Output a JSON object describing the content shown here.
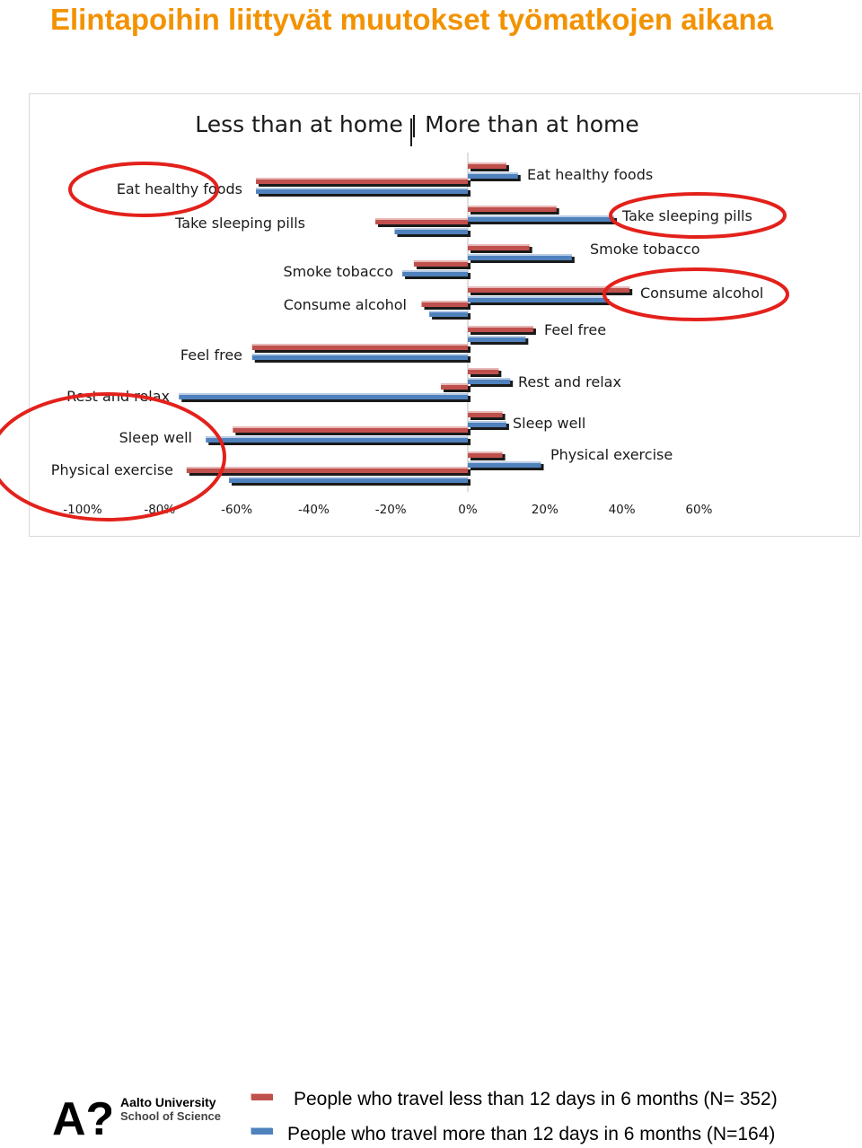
{
  "page": {
    "title": "Elintapoihin liittyvät muutokset työmatkojen aikana"
  },
  "chart_data": {
    "type": "bar",
    "orientation": "horizontal",
    "title": "Less than at home | More than at home",
    "x_tick_labels": [
      "-100%",
      "-80%",
      "-60%",
      "-40%",
      "-20%",
      "0%",
      "20%",
      "40%",
      "60%"
    ],
    "xlim": [
      -100,
      60
    ],
    "grid": false,
    "legend_position": "bottom",
    "series": [
      {
        "name": "People who travel less than 12 days in 6 months (N= 352)",
        "color": "#c0504d"
      },
      {
        "name": "People who travel more than 12 days in 6 months (N=164)",
        "color": "#4f81bd"
      }
    ],
    "less_than_at_home": {
      "groups": [
        {
          "label": "Eat healthy foods",
          "values": [
            -55,
            -55
          ]
        },
        {
          "label": "Take sleeping pills",
          "values": [
            -24,
            -19
          ]
        },
        {
          "label": "Smoke tobacco",
          "values": [
            -14,
            -17
          ]
        },
        {
          "label": "Consume alcohol",
          "values": [
            -12,
            -10
          ]
        },
        {
          "label": "Feel free",
          "values": [
            -56,
            -56
          ]
        },
        {
          "label": "Rest and relax",
          "values": [
            -7,
            -75
          ]
        },
        {
          "label": "Sleep well",
          "values": [
            -61,
            -68
          ]
        },
        {
          "label": "Physical exercise",
          "values": [
            -73,
            -62
          ]
        }
      ]
    },
    "more_than_at_home": {
      "groups": [
        {
          "label": "Eat healthy foods",
          "values": [
            10,
            13
          ]
        },
        {
          "label": "Take sleeping pills",
          "values": [
            23,
            38
          ]
        },
        {
          "label": "Smoke tobacco",
          "values": [
            16,
            27
          ]
        },
        {
          "label": "Consume alcohol",
          "values": [
            42,
            36
          ]
        },
        {
          "label": "Feel free",
          "values": [
            17,
            15
          ]
        },
        {
          "label": "Rest and relax",
          "values": [
            8,
            11
          ]
        },
        {
          "label": "Sleep well",
          "values": [
            9,
            10
          ]
        },
        {
          "label": "Physical exercise",
          "values": [
            9,
            19
          ]
        }
      ]
    },
    "highlighted_categories": [
      "Eat healthy foods",
      "Physical exercise",
      "Take sleeping pills",
      "Consume alcohol"
    ]
  },
  "footer": {
    "logo_mark": "A?",
    "logo_line1": "Aalto University",
    "logo_line2": "School of Science"
  },
  "colors": {
    "title": "#f39200",
    "series1": "#c0504d",
    "series2": "#4f81bd",
    "highlight_ellipse": "#e3211b"
  }
}
